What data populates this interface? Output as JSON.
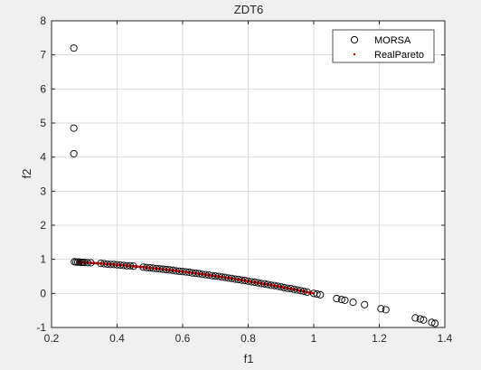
{
  "chart_data": {
    "type": "scatter",
    "title": "ZDT6",
    "xlabel": "f1",
    "ylabel": "f2",
    "xlim": [
      0.2,
      1.4
    ],
    "ylim": [
      -1,
      8
    ],
    "xticks": [
      0.2,
      0.4,
      0.6,
      0.8,
      1,
      1.2,
      1.4
    ],
    "xtick_labels": [
      "0.2",
      "0.4",
      "0.6",
      "0.8",
      "1",
      "1.2",
      "1.4"
    ],
    "yticks": [
      -1,
      0,
      1,
      2,
      3,
      4,
      5,
      6,
      7,
      8
    ],
    "ytick_labels": [
      "-1",
      "0",
      "1",
      "2",
      "3",
      "4",
      "5",
      "6",
      "7",
      "8"
    ],
    "grid": true,
    "legend_position": "top-right",
    "series": [
      {
        "name": "MORSA",
        "marker": "circle-open",
        "color": "#000000",
        "x": [
          0.268,
          0.268,
          0.268,
          0.27,
          0.275,
          0.28,
          0.285,
          0.29,
          0.295,
          0.3,
          0.31,
          0.32,
          0.35,
          0.36,
          0.37,
          0.38,
          0.39,
          0.4,
          0.41,
          0.42,
          0.43,
          0.44,
          0.45,
          0.48,
          0.49,
          0.5,
          0.51,
          0.52,
          0.53,
          0.54,
          0.55,
          0.56,
          0.57,
          0.58,
          0.59,
          0.6,
          0.61,
          0.62,
          0.63,
          0.64,
          0.65,
          0.66,
          0.67,
          0.68,
          0.69,
          0.7,
          0.71,
          0.72,
          0.73,
          0.74,
          0.75,
          0.76,
          0.77,
          0.78,
          0.79,
          0.8,
          0.81,
          0.82,
          0.83,
          0.84,
          0.85,
          0.86,
          0.87,
          0.88,
          0.89,
          0.9,
          0.91,
          0.92,
          0.93,
          0.94,
          0.95,
          0.96,
          0.97,
          0.98,
          1.0,
          1.01,
          1.02,
          1.07,
          1.085,
          1.095,
          1.12,
          1.155,
          1.205,
          1.22,
          1.31,
          1.325,
          1.335,
          1.36,
          1.37
        ],
        "y": [
          7.2,
          4.85,
          4.1,
          0.93,
          0.92,
          0.92,
          0.92,
          0.91,
          0.91,
          0.91,
          0.9,
          0.9,
          0.88,
          0.87,
          0.86,
          0.85,
          0.85,
          0.84,
          0.83,
          0.82,
          0.81,
          0.81,
          0.8,
          0.77,
          0.76,
          0.75,
          0.74,
          0.73,
          0.72,
          0.71,
          0.7,
          0.69,
          0.68,
          0.66,
          0.65,
          0.64,
          0.63,
          0.62,
          0.6,
          0.59,
          0.58,
          0.56,
          0.55,
          0.54,
          0.52,
          0.51,
          0.5,
          0.48,
          0.47,
          0.45,
          0.44,
          0.42,
          0.41,
          0.39,
          0.38,
          0.36,
          0.34,
          0.33,
          0.31,
          0.29,
          0.28,
          0.26,
          0.24,
          0.23,
          0.21,
          0.19,
          0.17,
          0.15,
          0.14,
          0.12,
          0.1,
          0.08,
          0.06,
          0.04,
          0.0,
          -0.02,
          -0.04,
          -0.15,
          -0.18,
          -0.2,
          -0.26,
          -0.33,
          -0.45,
          -0.48,
          -0.72,
          -0.75,
          -0.78,
          -0.85,
          -0.88
        ]
      },
      {
        "name": "RealPareto",
        "marker": "dot",
        "color": "#d00000",
        "x_range": [
          0.2808,
          1.0
        ],
        "equation": "y = 1 - x^2",
        "count": 200
      }
    ]
  }
}
